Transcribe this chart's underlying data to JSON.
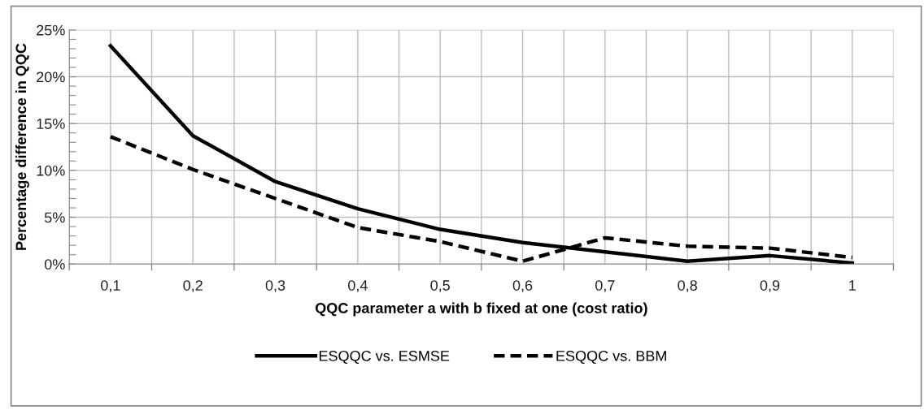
{
  "chart_data": {
    "type": "line",
    "xlabel": "QQC parameter a with b fixed at one (cost ratio)",
    "ylabel": "Percentage difference in QQC",
    "categories": [
      "0,1",
      "0,2",
      "0,3",
      "0,4",
      "0,5",
      "0,6",
      "0,7",
      "0,8",
      "0,9",
      "1"
    ],
    "series": [
      {
        "name": "ESQQC vs. ESMSE",
        "color": "#000000",
        "line_style": "solid",
        "values": [
          23.3,
          13.7,
          8.8,
          5.9,
          3.7,
          2.3,
          1.3,
          0.3,
          0.9,
          0.1
        ]
      },
      {
        "name": "ESQQC vs. BBM",
        "color": "#000000",
        "line_style": "dashed",
        "values": [
          13.6,
          10.1,
          7.0,
          3.9,
          2.4,
          0.3,
          2.8,
          1.9,
          1.7,
          0.7
        ]
      }
    ],
    "ylim": [
      0,
      25
    ],
    "yticks": [
      {
        "value": 0,
        "label": "0%"
      },
      {
        "value": 1,
        "label": null
      },
      {
        "value": 2,
        "label": null
      },
      {
        "value": 3,
        "label": null
      },
      {
        "value": 4,
        "label": null
      },
      {
        "value": 5,
        "label": "5%"
      },
      {
        "value": 6,
        "label": null
      },
      {
        "value": 7,
        "label": null
      },
      {
        "value": 8,
        "label": null
      },
      {
        "value": 9,
        "label": null
      },
      {
        "value": 10,
        "label": "10%"
      },
      {
        "value": 11,
        "label": null
      },
      {
        "value": 12,
        "label": null
      },
      {
        "value": 13,
        "label": null
      },
      {
        "value": 14,
        "label": null
      },
      {
        "value": 15,
        "label": "15%"
      },
      {
        "value": 16,
        "label": null
      },
      {
        "value": 17,
        "label": null
      },
      {
        "value": 18,
        "label": null
      },
      {
        "value": 19,
        "label": null
      },
      {
        "value": 20,
        "label": "20%"
      },
      {
        "value": 21,
        "label": null
      },
      {
        "value": 22,
        "label": null
      },
      {
        "value": 23,
        "label": null
      },
      {
        "value": 24,
        "label": null
      },
      {
        "value": 25,
        "label": "25%"
      }
    ],
    "grid": true,
    "legend": "bottom",
    "marker": "none"
  }
}
